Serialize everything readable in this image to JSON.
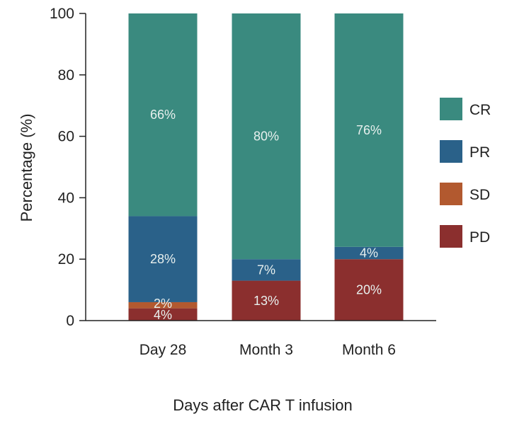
{
  "chart_data": {
    "type": "bar",
    "stacked": true,
    "title": "",
    "xlabel": "Days after CAR T infusion",
    "ylabel": "Percentage (%)",
    "ylim": [
      0,
      100
    ],
    "yticks": [
      "0",
      "20",
      "40",
      "60",
      "80",
      "100"
    ],
    "categories": [
      "Day 28",
      "Month 3",
      "Month 6"
    ],
    "series": [
      {
        "name": "PD",
        "color": "#8b2f2e",
        "values": [
          4,
          13,
          20
        ],
        "labels": [
          "4%",
          "13%",
          "20%"
        ]
      },
      {
        "name": "SD",
        "color": "#b2592f",
        "values": [
          2,
          0,
          0
        ],
        "labels": [
          "2%",
          "",
          ""
        ]
      },
      {
        "name": "PR",
        "color": "#2a6189",
        "values": [
          28,
          7,
          4
        ],
        "labels": [
          "28%",
          "7%",
          "4%"
        ]
      },
      {
        "name": "CR",
        "color": "#3a8a7f",
        "values": [
          66,
          80,
          76
        ],
        "labels": [
          "66%",
          "80%",
          "76%"
        ]
      }
    ],
    "legend": {
      "position": "right",
      "order": [
        "CR",
        "PR",
        "SD",
        "PD"
      ]
    },
    "grid": false
  }
}
